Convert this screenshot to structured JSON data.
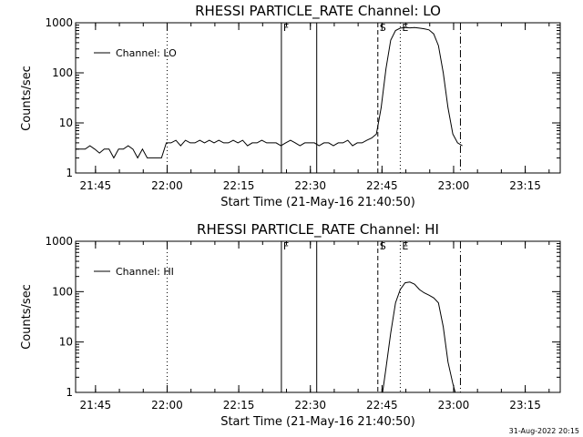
{
  "footer": {
    "timestamp": "31-Aug-2022 20:15"
  },
  "chart_data": [
    {
      "type": "line",
      "title": "RHESSI PARTICLE_RATE Channel: LO",
      "xlabel": "Start Time (21-May-16 21:40:50)",
      "ylabel": "Counts/sec",
      "y_scale": "log",
      "ylim": [
        1,
        1000
      ],
      "y_ticks": [
        1,
        10,
        100,
        1000
      ],
      "y_tick_labels": [
        "1",
        "10",
        "100",
        "1000"
      ],
      "x_unit": "minutes after 21:40:50",
      "xlim": [
        0,
        101.5
      ],
      "x_ticks": [
        4.17,
        19.17,
        34.17,
        49.17,
        64.17,
        79.17,
        94.17
      ],
      "x_tick_labels": [
        "21:45",
        "22:00",
        "22:15",
        "22:30",
        "22:45",
        "23:00",
        "23:15"
      ],
      "legend": {
        "label": "Channel: LO",
        "position": "top-left"
      },
      "markers": [
        {
          "x": 19.17,
          "style": "dotted",
          "label": ""
        },
        {
          "x": 43.1,
          "style": "solid",
          "label": "F"
        },
        {
          "x": 50.5,
          "style": "solid",
          "label": ""
        },
        {
          "x": 63.3,
          "style": "dashed",
          "label": "S"
        },
        {
          "x": 68.0,
          "style": "dotted",
          "label": "E"
        },
        {
          "x": 80.6,
          "style": "dashdot",
          "label": ""
        }
      ],
      "series": [
        {
          "name": "Channel: LO",
          "x": [
            0,
            1,
            2,
            3,
            4,
            5,
            6,
            7,
            8,
            9,
            10,
            11,
            12,
            13,
            14,
            15,
            16,
            17,
            18,
            19,
            20,
            21,
            22,
            23,
            24,
            25,
            26,
            27,
            28,
            29,
            30,
            31,
            32,
            33,
            34,
            35,
            36,
            37,
            38,
            39,
            40,
            41,
            42,
            43,
            44,
            45,
            46,
            47,
            48,
            49,
            50,
            51,
            52,
            53,
            54,
            55,
            56,
            57,
            58,
            59,
            60,
            61,
            62,
            63,
            64,
            65,
            66,
            67,
            68,
            69,
            70,
            71,
            72,
            73,
            74,
            75,
            76,
            77,
            78,
            79,
            80,
            81
          ],
          "y": [
            3,
            3,
            3,
            3.5,
            3,
            2.5,
            3,
            3,
            2,
            3,
            3,
            3.5,
            3,
            2,
            3,
            2,
            2,
            2,
            2,
            4,
            4,
            4.5,
            3.5,
            4.5,
            4,
            4,
            4.5,
            4,
            4.5,
            4,
            4.5,
            4,
            4,
            4.5,
            4,
            4.5,
            3.5,
            4,
            4,
            4.5,
            4,
            4,
            4,
            3.5,
            4,
            4.5,
            4,
            3.5,
            4,
            4,
            4,
            3.5,
            4,
            4,
            3.5,
            4,
            4,
            4.5,
            3.5,
            4,
            4,
            4.5,
            5,
            6,
            20,
            120,
            450,
            700,
            780,
            800,
            790,
            800,
            780,
            760,
            720,
            600,
            350,
            100,
            20,
            6,
            4,
            3.5
          ]
        }
      ]
    },
    {
      "type": "line",
      "title": "RHESSI PARTICLE_RATE Channel: HI",
      "xlabel": "Start Time (21-May-16 21:40:50)",
      "ylabel": "Counts/sec",
      "y_scale": "log",
      "ylim": [
        1,
        1000
      ],
      "y_ticks": [
        1,
        10,
        100,
        1000
      ],
      "y_tick_labels": [
        "1",
        "10",
        "100",
        "1000"
      ],
      "x_unit": "minutes after 21:40:50",
      "xlim": [
        0,
        101.5
      ],
      "x_ticks": [
        4.17,
        19.17,
        34.17,
        49.17,
        64.17,
        79.17,
        94.17
      ],
      "x_tick_labels": [
        "21:45",
        "22:00",
        "22:15",
        "22:30",
        "22:45",
        "23:00",
        "23:15"
      ],
      "legend": {
        "label": "Channel: HI",
        "position": "top-left"
      },
      "markers": [
        {
          "x": 19.17,
          "style": "dotted",
          "label": ""
        },
        {
          "x": 43.1,
          "style": "solid",
          "label": "F"
        },
        {
          "x": 50.5,
          "style": "solid",
          "label": ""
        },
        {
          "x": 63.3,
          "style": "dashed",
          "label": "S"
        },
        {
          "x": 68.0,
          "style": "dotted",
          "label": "E"
        },
        {
          "x": 80.6,
          "style": "dashdot",
          "label": ""
        }
      ],
      "series": [
        {
          "name": "Channel: HI",
          "x": [
            64.3,
            65,
            66,
            67,
            68,
            69,
            70,
            71,
            72,
            73,
            74,
            75,
            76,
            77,
            78,
            79,
            79.5
          ],
          "y": [
            1,
            3,
            15,
            60,
            110,
            150,
            155,
            140,
            110,
            95,
            85,
            75,
            60,
            20,
            4,
            1.5,
            1
          ]
        }
      ]
    }
  ]
}
